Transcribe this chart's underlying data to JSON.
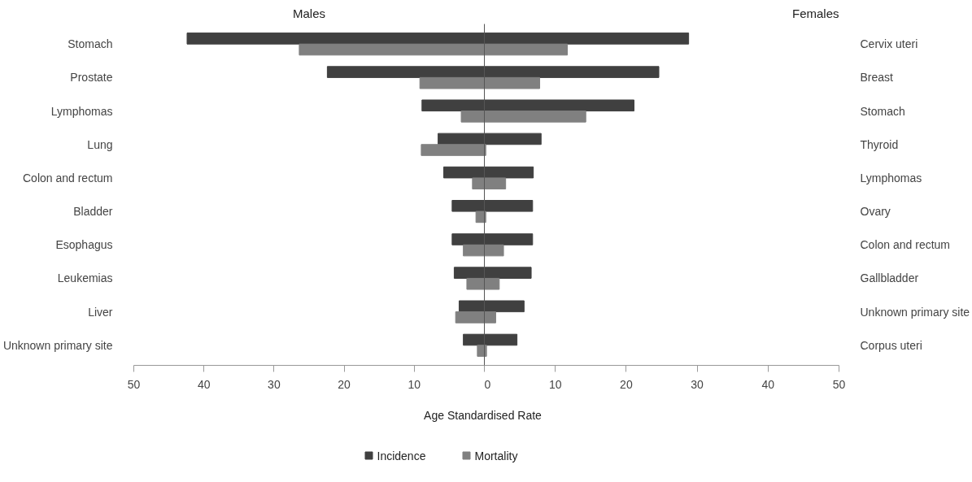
{
  "chart_data": [
    {
      "type": "bar",
      "orientation": "horizontal",
      "title": "Males",
      "xlabel": "Age Standardised Rate",
      "legend": "bottom",
      "grid": false,
      "categories": [
        "Stomach",
        "Prostate",
        "Lymphomas",
        "Lung",
        "Colon and rectum",
        "Bladder",
        "Esophagus",
        "Leukemias",
        "Liver",
        "Unknown primary site"
      ],
      "xlim": [
        50,
        0
      ],
      "xticks": [
        50,
        40,
        30,
        20,
        10,
        {
          "value": 0,
          "label": null
        }
      ],
      "series": [
        {
          "name": "Incidence",
          "color": "#404040",
          "values": [
            42.4,
            22.4,
            8.9,
            6.6,
            5.8,
            4.6,
            4.6,
            4.3,
            3.6,
            3.0
          ]
        },
        {
          "name": "Mortality",
          "color": "#808080",
          "values": [
            26.4,
            9.2,
            3.3,
            9.0,
            1.7,
            1.2,
            3.0,
            2.5,
            4.1,
            1.0
          ]
        }
      ]
    },
    {
      "type": "bar",
      "orientation": "horizontal",
      "title": "Females",
      "grid": false,
      "categories": [
        "Cervix uteri",
        "Breast",
        "Stomach",
        "Thyroid",
        "Lymphomas",
        "Ovary",
        "Colon and rectum",
        "Gallbladder",
        "Unknown primary site",
        "Corpus uteri"
      ],
      "xlim": [
        0,
        50
      ],
      "xticks": [
        0,
        10,
        20,
        30,
        40,
        50
      ],
      "series": [
        {
          "color": "#404040",
          "values": [
            28.8,
            24.6,
            21.1,
            8.0,
            6.9,
            6.8,
            6.8,
            6.6,
            5.6,
            4.6
          ]
        },
        {
          "color": "#808080",
          "values": [
            11.7,
            7.8,
            14.3,
            0.2,
            3.0,
            0.2,
            2.7,
            2.1,
            1.6,
            0.3
          ]
        }
      ]
    }
  ]
}
